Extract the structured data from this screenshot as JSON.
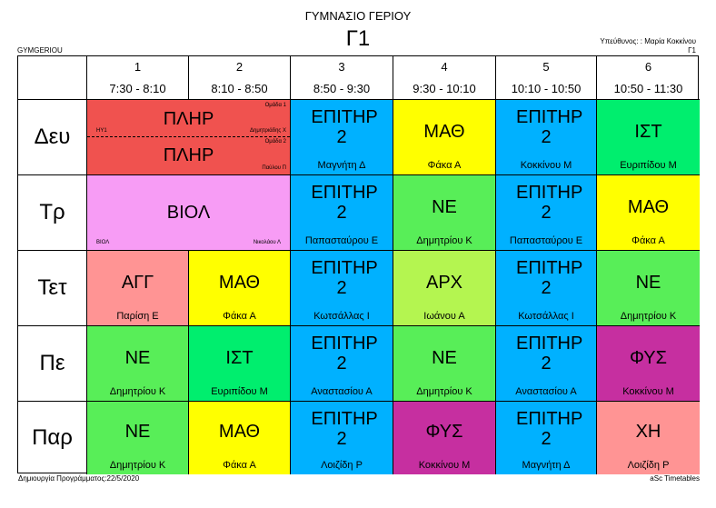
{
  "header": {
    "school": "ΓΥΜΝΑΣΙΟ ΓΕΡΙΟΥ",
    "class_name": "Γ1",
    "code": "GYMGERIOU",
    "responsible": "Υπεύθυνος: : Μαρία Κοκκίνου",
    "responsible_class": "Γ1"
  },
  "periods": [
    {
      "num": "1",
      "time": "7:30 - 8:10"
    },
    {
      "num": "2",
      "time": "8:10 - 8:50"
    },
    {
      "num": "3",
      "time": "8:50 - 9:30"
    },
    {
      "num": "4",
      "time": "9:30 - 10:10"
    },
    {
      "num": "5",
      "time": "10:10 - 10:50"
    },
    {
      "num": "6",
      "time": "10:50 - 11:30"
    }
  ],
  "days": [
    "Δευ",
    "Τρ",
    "Τετ",
    "Πε",
    "Παρ"
  ],
  "split": {
    "top": {
      "subject": "ΠΛΗΡ",
      "group": "Ομάδα 1",
      "room": "ΗΥ1",
      "teacher": "Δημητριάδης Χ"
    },
    "bottom": {
      "subject": "ΠΛΗΡ",
      "group": "Ομάδα 2",
      "teacher": "Παύλου Π"
    }
  },
  "biol": {
    "subject": "ΒΙΟΛ",
    "room": "ΒΙΟΛ",
    "teacher": "Νικολάου Λ"
  },
  "lessons": {
    "mon": [
      {
        "subject": "ΕΠΙΤΗΡ 2",
        "teacher": "Μαγνήτη Δ"
      },
      {
        "subject": "ΜΑΘ",
        "teacher": "Φάκα Α"
      },
      {
        "subject": "ΕΠΙΤΗΡ 2",
        "teacher": "Κοκκίνου Μ"
      },
      {
        "subject": "ΙΣΤ",
        "teacher": "Ευριπίδου Μ"
      }
    ],
    "tue": [
      {
        "subject": "ΕΠΙΤΗΡ 2",
        "teacher": "Παπασταύρου Ε"
      },
      {
        "subject": "ΝΕ",
        "teacher": "Δημητρίου Κ"
      },
      {
        "subject": "ΕΠΙΤΗΡ 2",
        "teacher": "Παπασταύρου Ε"
      },
      {
        "subject": "ΜΑΘ",
        "teacher": "Φάκα Α"
      }
    ],
    "wed": [
      {
        "subject": "ΑΓΓ",
        "teacher": "Παρίση Ε"
      },
      {
        "subject": "ΜΑΘ",
        "teacher": "Φάκα Α"
      },
      {
        "subject": "ΕΠΙΤΗΡ 2",
        "teacher": "Κωτσάλλας Ι"
      },
      {
        "subject": "ΑΡΧ",
        "teacher": "Ιωάνου Α"
      },
      {
        "subject": "ΕΠΙΤΗΡ 2",
        "teacher": "Κωτσάλλας Ι"
      },
      {
        "subject": "ΝΕ",
        "teacher": "Δημητρίου Κ"
      }
    ],
    "thu": [
      {
        "subject": "ΝΕ",
        "teacher": "Δημητρίου Κ"
      },
      {
        "subject": "ΙΣΤ",
        "teacher": "Ευριπίδου Μ"
      },
      {
        "subject": "ΕΠΙΤΗΡ 2",
        "teacher": "Αναστασίου Α"
      },
      {
        "subject": "ΝΕ",
        "teacher": "Δημητρίου Κ"
      },
      {
        "subject": "ΕΠΙΤΗΡ 2",
        "teacher": "Αναστασίου Α"
      },
      {
        "subject": "ΦΥΣ",
        "teacher": "Κοκκίνου Μ"
      }
    ],
    "fri": [
      {
        "subject": "ΝΕ",
        "teacher": "Δημητρίου Κ"
      },
      {
        "subject": "ΜΑΘ",
        "teacher": "Φάκα Α"
      },
      {
        "subject": "ΕΠΙΤΗΡ 2",
        "teacher": "Λοιζίδη Ρ"
      },
      {
        "subject": "ΦΥΣ",
        "teacher": "Κοκκίνου Μ"
      },
      {
        "subject": "ΕΠΙΤΗΡ 2",
        "teacher": "Μαγνήτη Δ"
      },
      {
        "subject": "ΧΗ",
        "teacher": "Λοιζίδη Ρ"
      }
    ]
  },
  "colors": {
    "ΠΛΗΡ": "#f0524f",
    "ΒΙΟΛ": "#f79cf5",
    "ΕΠΙΤΗΡ 2": "#00b1ff",
    "ΜΑΘ": "#ffff00",
    "ΙΣΤ": "#00ee6e",
    "ΝΕ": "#58ee58",
    "ΑΓΓ": "#ff9494",
    "ΑΡΧ": "#b4f550",
    "ΦΥΣ": "#c62fa0",
    "ΧΗ": "#ff9494"
  },
  "footer": {
    "created": "Δημιουργία Προγράμματος:22/5/2020",
    "software": "aSc Timetables"
  }
}
